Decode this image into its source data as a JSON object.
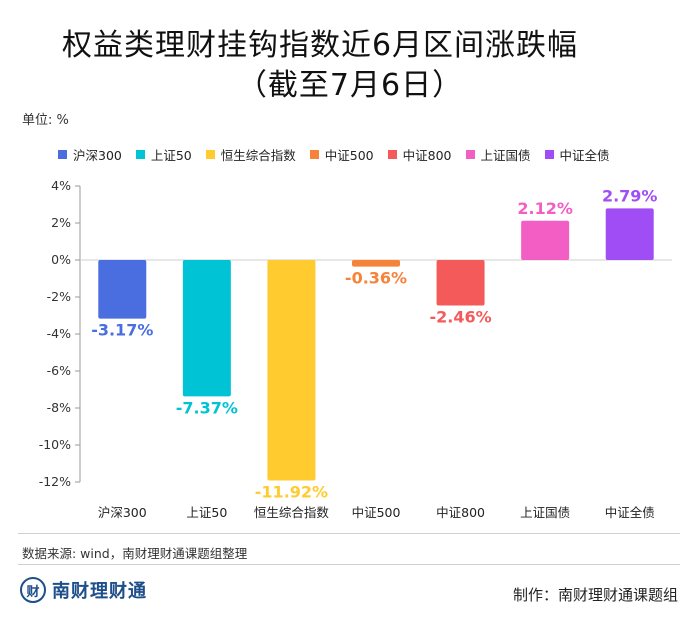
{
  "title_line1": "权益类理财挂钩指数近6月区间涨跌幅",
  "title_line2": "（截至7月6日）",
  "unit_label": "单位: %",
  "source": "数据来源: wind，南财理财通课题组整理",
  "logo_text": "南财理财通",
  "credit": "制作：南财理财通课题组",
  "chart_data": {
    "type": "bar",
    "categories": [
      "沪深300",
      "上证50",
      "恒生综合指数",
      "中证500",
      "中证800",
      "上证国债",
      "中证全债"
    ],
    "values": [
      -3.17,
      -7.37,
      -11.92,
      -0.36,
      -2.46,
      2.12,
      2.79
    ],
    "value_labels": [
      "-3.17%",
      "-7.37%",
      "-11.92%",
      "-0.36%",
      "-2.46%",
      "2.12%",
      "2.79%"
    ],
    "colors": [
      "#4a6ee0",
      "#00c3d6",
      "#ffcb2f",
      "#f5833a",
      "#f45a5a",
      "#f25ec4",
      "#a14df5"
    ],
    "ylim": [
      -12,
      4
    ],
    "yticks": [
      4,
      2,
      0,
      -2,
      -4,
      -6,
      -8,
      -10,
      -12
    ],
    "ytick_labels": [
      "4%",
      "2%",
      "0%",
      "-2%",
      "-4%",
      "-6%",
      "-8%",
      "-10%",
      "-12%"
    ],
    "legend_position": "top",
    "grid": false
  }
}
